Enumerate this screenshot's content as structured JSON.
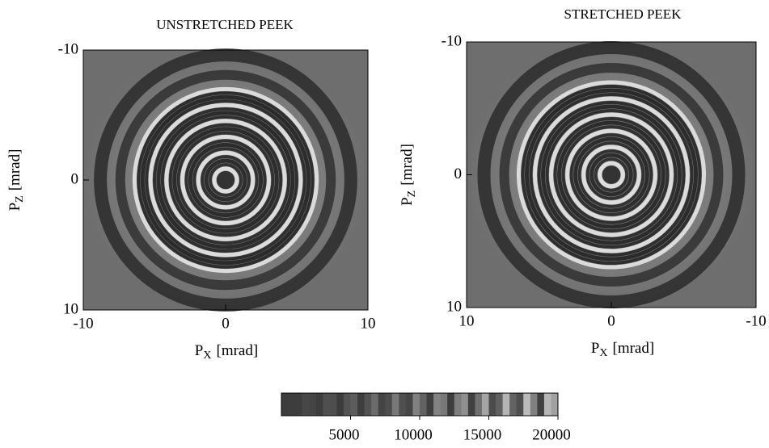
{
  "chart_data": [
    {
      "type": "heatmap",
      "title": "UNSTRETCHED PEEK",
      "xlabel": {
        "symbol": "P",
        "subscript": "X",
        "unit": "[mrad]"
      },
      "ylabel": {
        "symbol": "P",
        "subscript": "Z",
        "unit": "[mrad]"
      },
      "xlim": [
        -10,
        10
      ],
      "xticks": [
        -10,
        0,
        10
      ],
      "ylim": [
        10,
        -10
      ],
      "yticks": [
        -10,
        0,
        10
      ]
    },
    {
      "type": "heatmap",
      "title": "STRETCHED PEEK",
      "xlabel": {
        "symbol": "P",
        "subscript": "X",
        "unit": "[mrad]"
      },
      "ylabel": {
        "symbol": "P",
        "subscript": "Z",
        "unit": "[mrad]"
      },
      "xlim": [
        10,
        -10
      ],
      "xticks": [
        10,
        0,
        -10
      ],
      "ylim": [
        10,
        -10
      ],
      "yticks": [
        -10,
        0,
        10
      ]
    }
  ],
  "colorbar": {
    "lim": [
      0,
      20000
    ],
    "ticks": [
      5000,
      10000,
      15000,
      20000
    ]
  }
}
